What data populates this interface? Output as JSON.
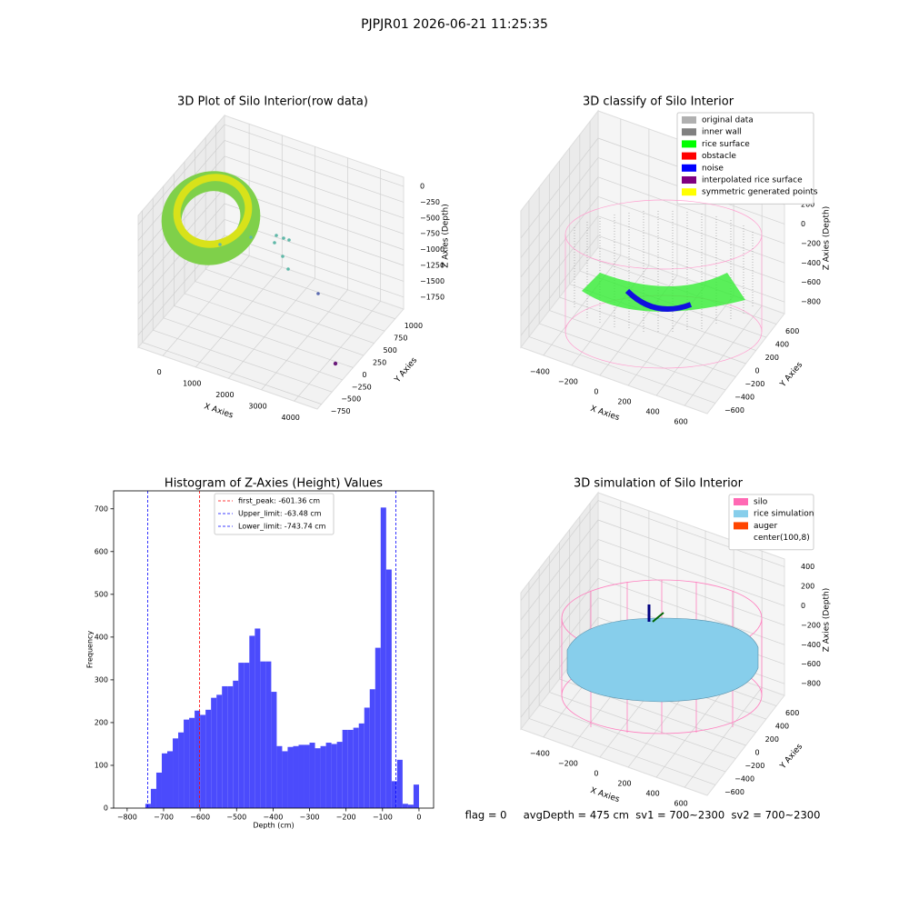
{
  "title": "PJPJR01 2026-06-21 11:25:35",
  "footer": "flag = 0     avgDepth = 475 cm  sv1 = 700~2300  sv2 = 700~2300",
  "chart_data": [
    {
      "type": "scatter3d",
      "title": "3D Plot of Silo Interior(row data)",
      "xlabel": "X Axies",
      "ylabel": "Y Axies",
      "zlabel": "Z Axies (Depth)",
      "xlim": [
        -750,
        4700
      ],
      "xticks": [
        0,
        1000,
        2000,
        3000,
        4000
      ],
      "ylim": [
        -850,
        1200
      ],
      "yticks": [
        {
          "value": -750,
          "label": "−750"
        },
        {
          "value": -500,
          "label": "−500"
        },
        {
          "value": -250,
          "label": "−250"
        },
        0,
        250,
        500,
        750,
        1000
      ],
      "zlim": [
        -1940,
        145
      ],
      "zticks": [
        0,
        {
          "value": -250,
          "label": "−250"
        },
        {
          "value": -500,
          "label": "−500"
        },
        {
          "value": -750,
          "label": "−750"
        },
        {
          "value": -1000,
          "label": "−1000"
        },
        {
          "value": -1250,
          "label": "−1250"
        },
        {
          "value": -1500,
          "label": "−1500"
        },
        {
          "value": -1750,
          "label": "−1750"
        }
      ]
    },
    {
      "type": "scatter3d",
      "title": "3D classify of Silo Interior",
      "xlabel": "X Axies",
      "ylabel": "Y Axies",
      "zlabel": "Z Axies (Depth)",
      "xlim": [
        -560,
        760
      ],
      "xticks": [
        {
          "value": -400,
          "label": "−400"
        },
        {
          "value": -200,
          "label": "−200"
        },
        0,
        200,
        400,
        600
      ],
      "ylim": [
        -760,
        760
      ],
      "yticks": [
        {
          "value": -600,
          "label": "−600"
        },
        {
          "value": -400,
          "label": "−400"
        },
        {
          "value": -200,
          "label": "−200"
        },
        0,
        200,
        400,
        600
      ],
      "zlim": [
        -920,
        480
      ],
      "zticks": [
        {
          "value": -800,
          "label": "−800"
        },
        {
          "value": -600,
          "label": "−600"
        },
        {
          "value": -400,
          "label": "−400"
        },
        {
          "value": -200,
          "label": "−200"
        },
        0,
        200
      ],
      "legend": [
        {
          "name": "original data",
          "color": "#b0b0b0"
        },
        {
          "name": "inner wall",
          "color": "#808080"
        },
        {
          "name": "rice surface",
          "color": "#00ff00"
        },
        {
          "name": "obstacle",
          "color": "#ff0000"
        },
        {
          "name": "noise",
          "color": "#0000ff"
        },
        {
          "name": "interpolated rice surface",
          "color": "#800080"
        },
        {
          "name": "symmetric generated points",
          "color": "#ffff00"
        }
      ]
    },
    {
      "type": "histogram",
      "title": "Histogram of Z-Axies (Height) Values",
      "xlabel": "Depth (cm)",
      "ylabel": "Frequency",
      "color": "#4b4bfc",
      "bins": [
        -750,
        -735,
        -720,
        -705,
        -690,
        -675,
        -660,
        -645,
        -630,
        -615,
        -600,
        -585,
        -570,
        -555,
        -540,
        -525,
        -510,
        -495,
        -480,
        -465,
        -450,
        -435,
        -420,
        -405,
        -390,
        -375,
        -360,
        -345,
        -330,
        -315,
        -300,
        -285,
        -270,
        -255,
        -240,
        -225,
        -210,
        -195,
        -180,
        -165,
        -150,
        -135,
        -120,
        -105,
        -90,
        -75,
        -60,
        -45,
        -30,
        -15,
        0
      ],
      "values": [
        10,
        45,
        83,
        128,
        133,
        163,
        177,
        207,
        211,
        228,
        218,
        230,
        258,
        265,
        285,
        285,
        298,
        340,
        340,
        403,
        420,
        343,
        343,
        272,
        145,
        133,
        143,
        145,
        148,
        148,
        153,
        140,
        145,
        153,
        150,
        155,
        183,
        183,
        188,
        198,
        235,
        278,
        375,
        703,
        558,
        63,
        113,
        10,
        8,
        55
      ],
      "xlim": [
        -837,
        40
      ],
      "xticks": [
        {
          "value": -800,
          "label": "−800"
        },
        {
          "value": -700,
          "label": "−700"
        },
        {
          "value": -600,
          "label": "−600"
        },
        {
          "value": -500,
          "label": "−500"
        },
        {
          "value": -400,
          "label": "−400"
        },
        {
          "value": -300,
          "label": "−300"
        },
        {
          "value": -200,
          "label": "−200"
        },
        {
          "value": -100,
          "label": "−100"
        },
        0
      ],
      "ylim": [
        0,
        742
      ],
      "yticks": [
        0,
        100,
        200,
        300,
        400,
        500,
        600,
        700
      ],
      "lines": [
        {
          "label": "first_peak: -601.36 cm",
          "value": -601.36,
          "color": "#ff0000"
        },
        {
          "label": "Upper_limit: -63.48 cm",
          "value": -63.48,
          "color": "#0000ff"
        },
        {
          "label": "Lower_limit: -743.74 cm",
          "value": -743.74,
          "color": "#0000ff"
        }
      ]
    },
    {
      "type": "surface3d",
      "title": "3D simulation of Silo Interior",
      "xlabel": "X Axies",
      "ylabel": "Y Axies",
      "zlabel": "Z Axies (Depth)",
      "xlim": [
        -560,
        760
      ],
      "xticks": [
        {
          "value": -400,
          "label": "−400"
        },
        {
          "value": -200,
          "label": "−200"
        },
        0,
        200,
        400,
        600
      ],
      "ylim": [
        -760,
        760
      ],
      "yticks": [
        {
          "value": -600,
          "label": "−600"
        },
        {
          "value": -400,
          "label": "−400"
        },
        {
          "value": -200,
          "label": "−200"
        },
        0,
        200,
        400,
        600
      ],
      "zlim": [
        -920,
        480
      ],
      "zticks": [
        {
          "value": -800,
          "label": "−800"
        },
        {
          "value": -600,
          "label": "−600"
        },
        {
          "value": -400,
          "label": "−400"
        },
        {
          "value": -200,
          "label": "−200"
        },
        0,
        200,
        400
      ],
      "legend": [
        {
          "name": "silo",
          "color": "#ff69b4"
        },
        {
          "name": "rice simulation",
          "color": "#87ceeb"
        },
        {
          "name": "auger",
          "color": "#ff4500"
        },
        {
          "name": "center(100,8)",
          "color": "#ffffff"
        }
      ]
    }
  ]
}
